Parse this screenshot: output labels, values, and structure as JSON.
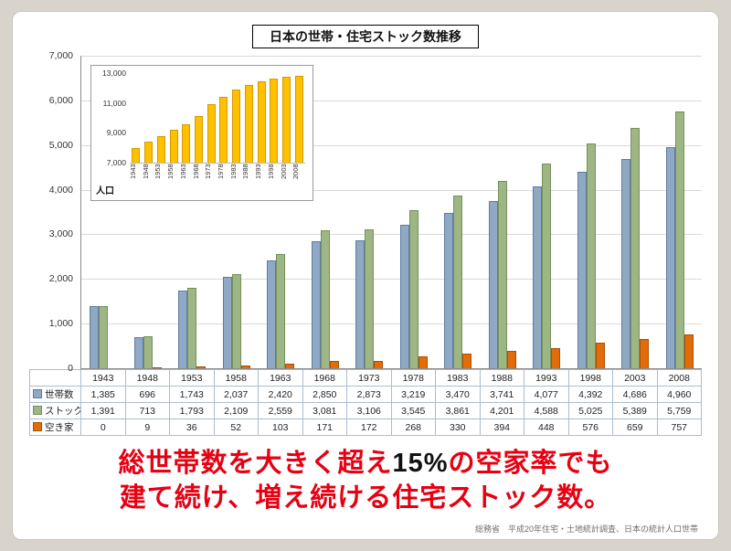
{
  "title": "日本の世帯・住宅ストック数推移",
  "caption": {
    "red1": "総世帯数を大きく超え",
    "black": "15%",
    "red2": "の空家率でも",
    "line2": "建て続け、増え続ける住宅ストック数。"
  },
  "source": "総務省　平成20年住宅・土地統計調査、日本の統計人口世帯",
  "colors": {
    "caption_red": "#e60012",
    "caption_black": "#111111",
    "households_fill": "#8ea8c6",
    "households_border": "#5f7d9e",
    "stock_fill": "#9eb584",
    "stock_border": "#75905a",
    "vacant_fill": "#e36c0a",
    "vacant_border": "#a94f05",
    "population_fill": "#ffc000",
    "population_border": "#d29b00",
    "grid": "#d9d9d9",
    "axis": "#8a8a8a",
    "table_border": "#a9bdd1"
  },
  "chart_data": [
    {
      "type": "bar",
      "title": "日本の世帯・住宅ストック数推移",
      "categories": [
        "1943",
        "1948",
        "1953",
        "1958",
        "1963",
        "1968",
        "1973",
        "1978",
        "1983",
        "1988",
        "1993",
        "1998",
        "2003",
        "2008"
      ],
      "series": [
        {
          "name": "世帯数",
          "color": "#8ea8c6",
          "border": "#5f7d9e",
          "values": [
            1385,
            696,
            1743,
            2037,
            2420,
            2850,
            2873,
            3219,
            3470,
            3741,
            4077,
            4392,
            4686,
            4960
          ]
        },
        {
          "name": "ストック数",
          "color": "#9eb584",
          "border": "#75905a",
          "values": [
            1391,
            713,
            1793,
            2109,
            2559,
            3081,
            3106,
            3545,
            3861,
            4201,
            4588,
            5025,
            5389,
            5759
          ]
        },
        {
          "name": "空き家",
          "color": "#e36c0a",
          "border": "#a94f05",
          "values": [
            0,
            9,
            36,
            52,
            103,
            171,
            172,
            268,
            330,
            394,
            448,
            576,
            659,
            757
          ]
        }
      ],
      "ylim": [
        0,
        7000
      ],
      "ytick_interval": 1000,
      "grid": true,
      "legend_position": "table-left-column"
    },
    {
      "type": "bar",
      "title": "人口",
      "categories": [
        "1943",
        "1948",
        "1953",
        "1958",
        "1963",
        "1968",
        "1973",
        "1978",
        "1983",
        "1988",
        "1993",
        "1998",
        "2003",
        "2008"
      ],
      "values": [
        8000,
        8400,
        8800,
        9200,
        9600,
        10100,
        10900,
        11400,
        11900,
        12200,
        12450,
        12650,
        12750,
        12800
      ],
      "ylim": [
        7000,
        13000
      ],
      "yticks": [
        7000,
        9000,
        11000,
        13000
      ],
      "color": "#ffc000",
      "border": "#d29b00",
      "grid": false
    }
  ]
}
